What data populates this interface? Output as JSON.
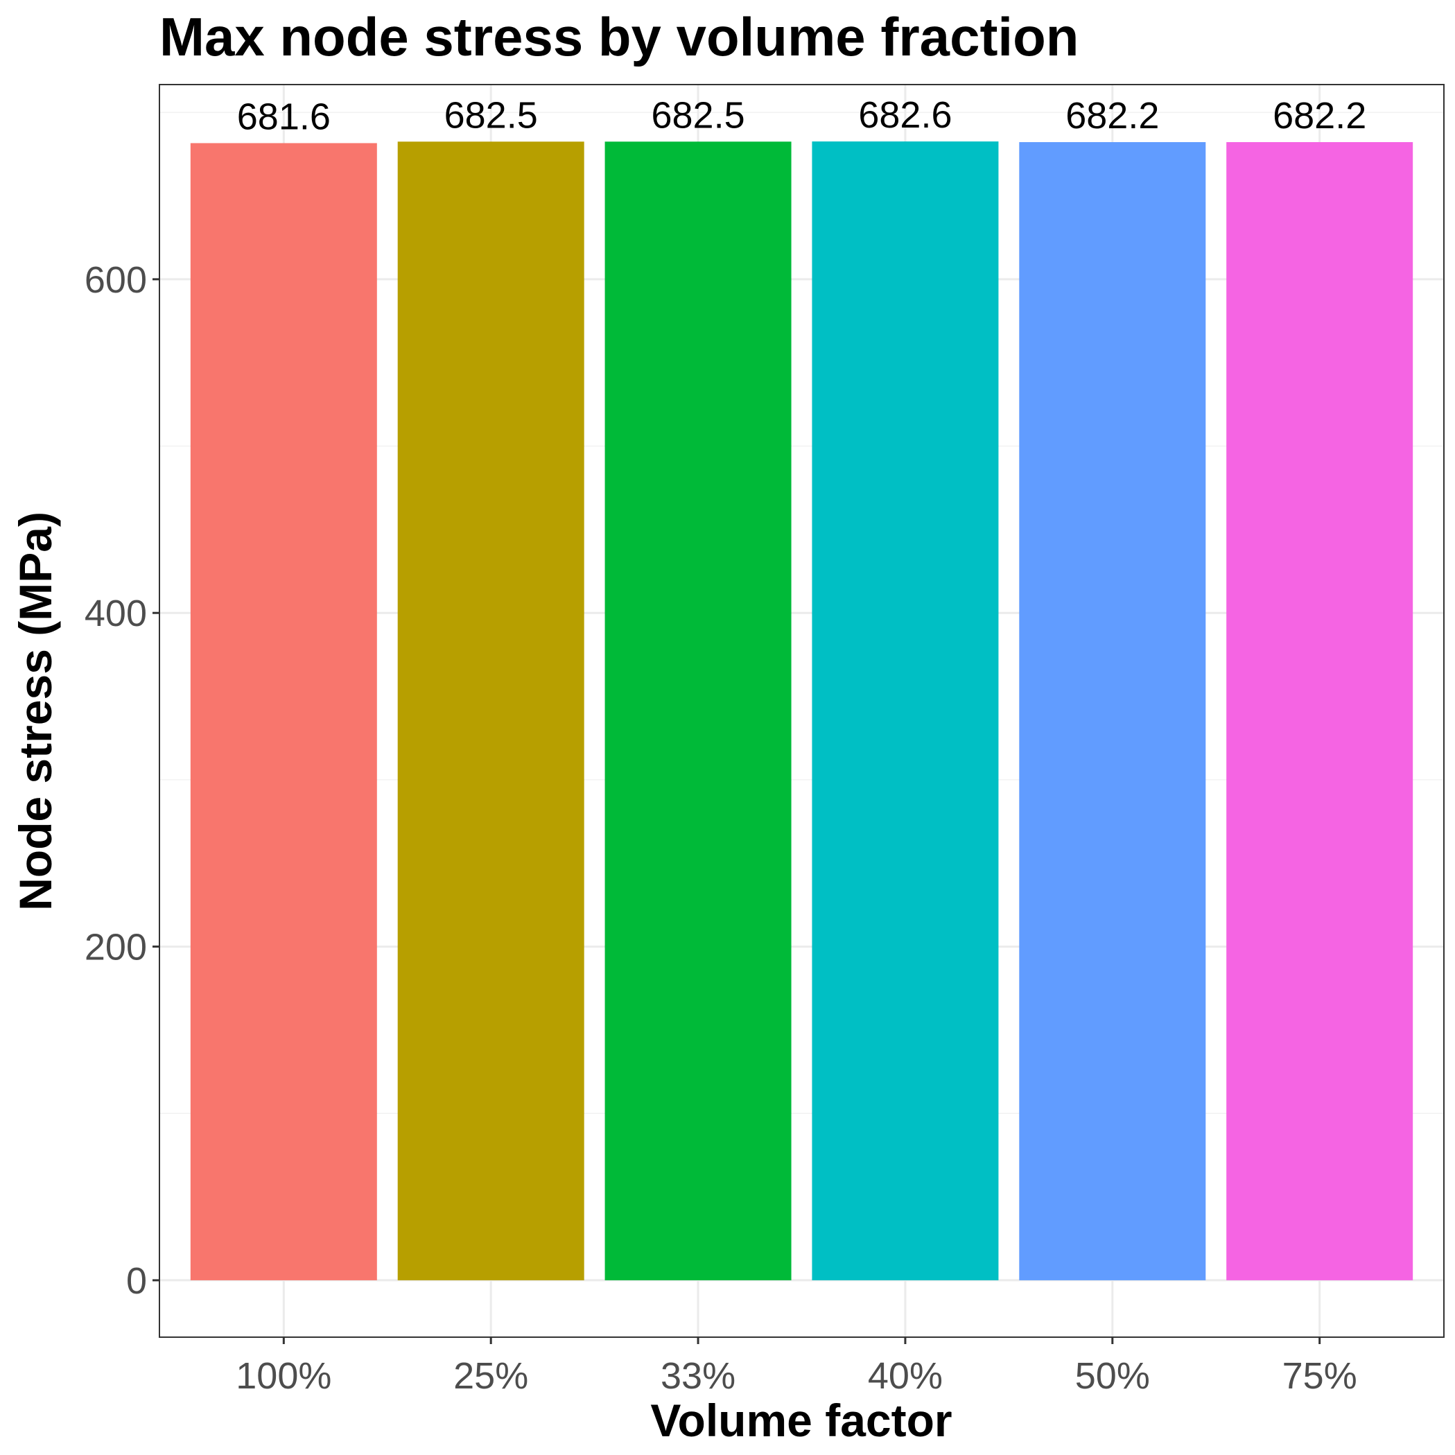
{
  "chart_data": {
    "type": "bar",
    "title": "Max node stress by volume fraction",
    "xlabel": "Volume factor",
    "ylabel": "Node stress (MPa)",
    "categories": [
      "100%",
      "25%",
      "33%",
      "40%",
      "50%",
      "75%"
    ],
    "values": [
      681.6,
      682.5,
      682.5,
      682.6,
      682.2,
      682.2
    ],
    "data_labels": [
      "681.6",
      "682.5",
      "682.5",
      "682.6",
      "682.2",
      "682.2"
    ],
    "colors": [
      "#F8766D",
      "#B79F00",
      "#00BA38",
      "#00BFC4",
      "#619CFF",
      "#F564E3"
    ],
    "ylim": [
      -34.1,
      716.7
    ],
    "yticks": [
      0,
      200,
      400,
      600
    ],
    "ytick_labels": [
      "0",
      "200",
      "400",
      "600"
    ],
    "grid": true,
    "legend": "none"
  }
}
